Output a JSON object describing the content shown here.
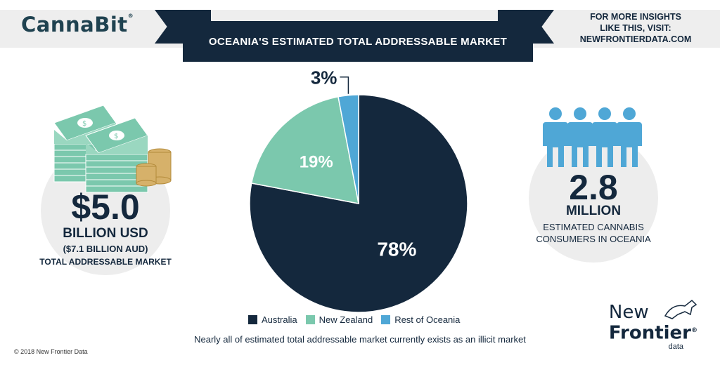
{
  "brand": {
    "name": "CannaBit",
    "mark": "®"
  },
  "header": {
    "title": "OCEANIA'S ESTIMATED TOTAL ADDRESSABLE MARKET"
  },
  "insights": {
    "line1": "FOR MORE INSIGHTS",
    "line2": "LIKE THIS, VISIT:",
    "line3": "NEWFRONTIERDATA.COM"
  },
  "left_stat": {
    "value": "$5.0",
    "unit": "BILLION USD",
    "sub": "($7.1 BILLION AUD)",
    "desc": "TOTAL ADDRESSABLE MARKET",
    "icon": "money-stack-icon"
  },
  "right_stat": {
    "value": "2.8",
    "unit": "MILLION",
    "desc1": "ESTIMATED CANNABIS",
    "desc2": "CONSUMERS IN OCEANIA",
    "icon": "people-icon"
  },
  "chart_data": {
    "type": "pie",
    "title": "OCEANIA'S ESTIMATED TOTAL ADDRESSABLE MARKET",
    "categories": [
      "Australia",
      "New Zealand",
      "Rest of Oceania"
    ],
    "values": [
      78,
      19,
      3
    ],
    "labels": [
      "78%",
      "19%",
      "3%"
    ],
    "colors": [
      "#14283d",
      "#7bc8ad",
      "#4fa7d6"
    ],
    "legend_position": "bottom"
  },
  "footnote": "Nearly all of estimated total addressable market currently exists as an illicit market",
  "copyright": "© 2018 New Frontier Data",
  "logo": {
    "line1": "New",
    "line2": "Frontier",
    "line3": "data",
    "mark": "®"
  }
}
